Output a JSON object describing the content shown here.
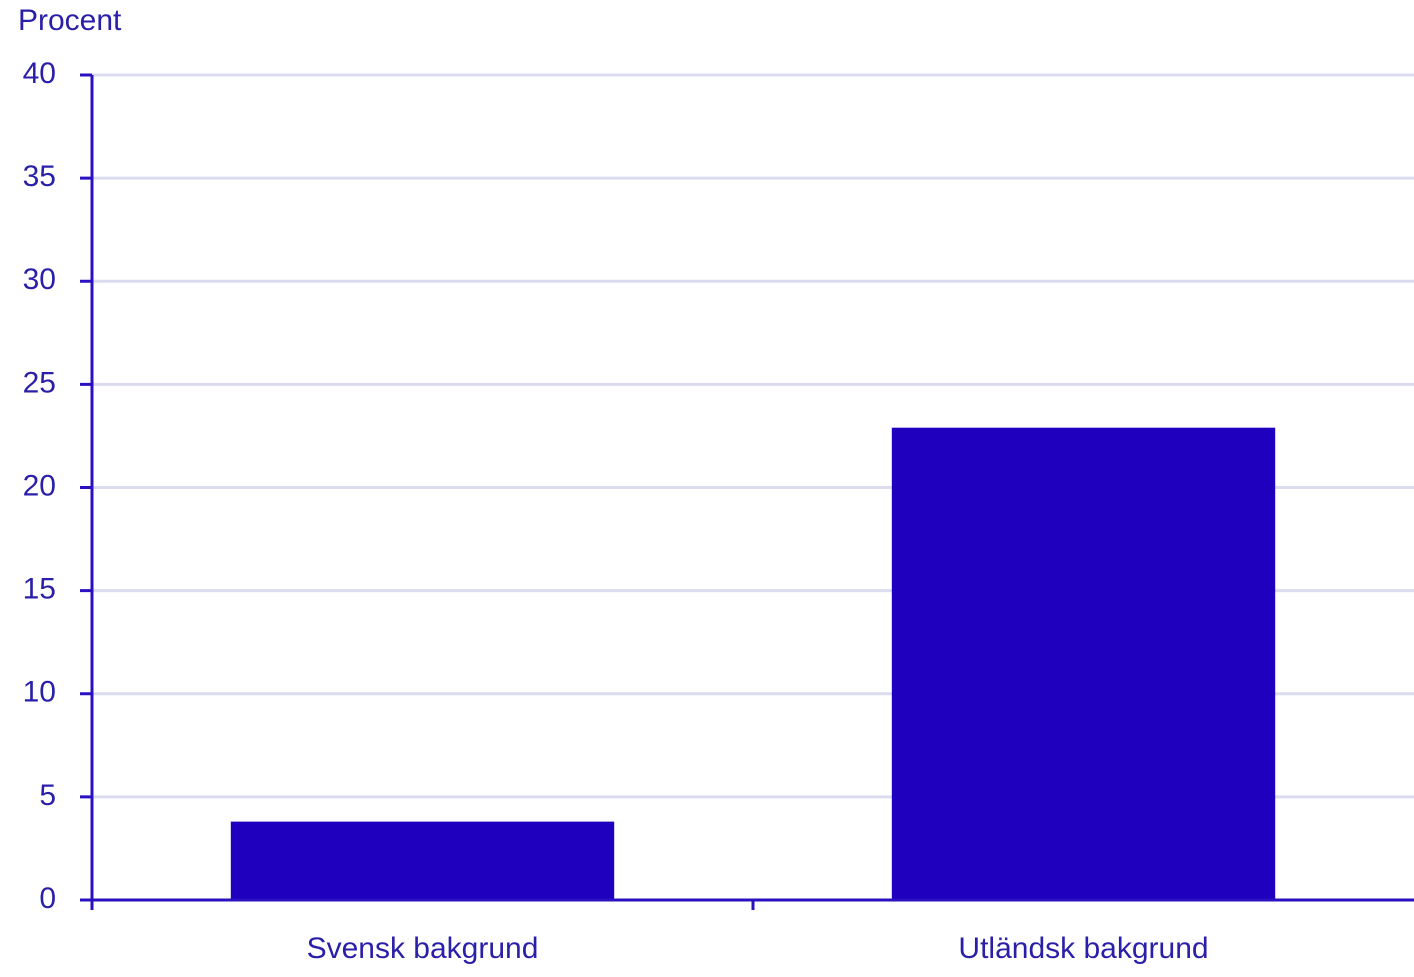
{
  "chart_data": {
    "type": "bar",
    "y_label": "Procent",
    "categories": [
      "Svensk bakgrund",
      "Utländsk bakgrund"
    ],
    "values": [
      3.8,
      22.9
    ],
    "color": "#1f00bf",
    "ylim": [
      0,
      40
    ],
    "yticks": [
      0,
      5,
      10,
      15,
      20,
      25,
      30,
      35,
      40
    ],
    "grid": true
  }
}
